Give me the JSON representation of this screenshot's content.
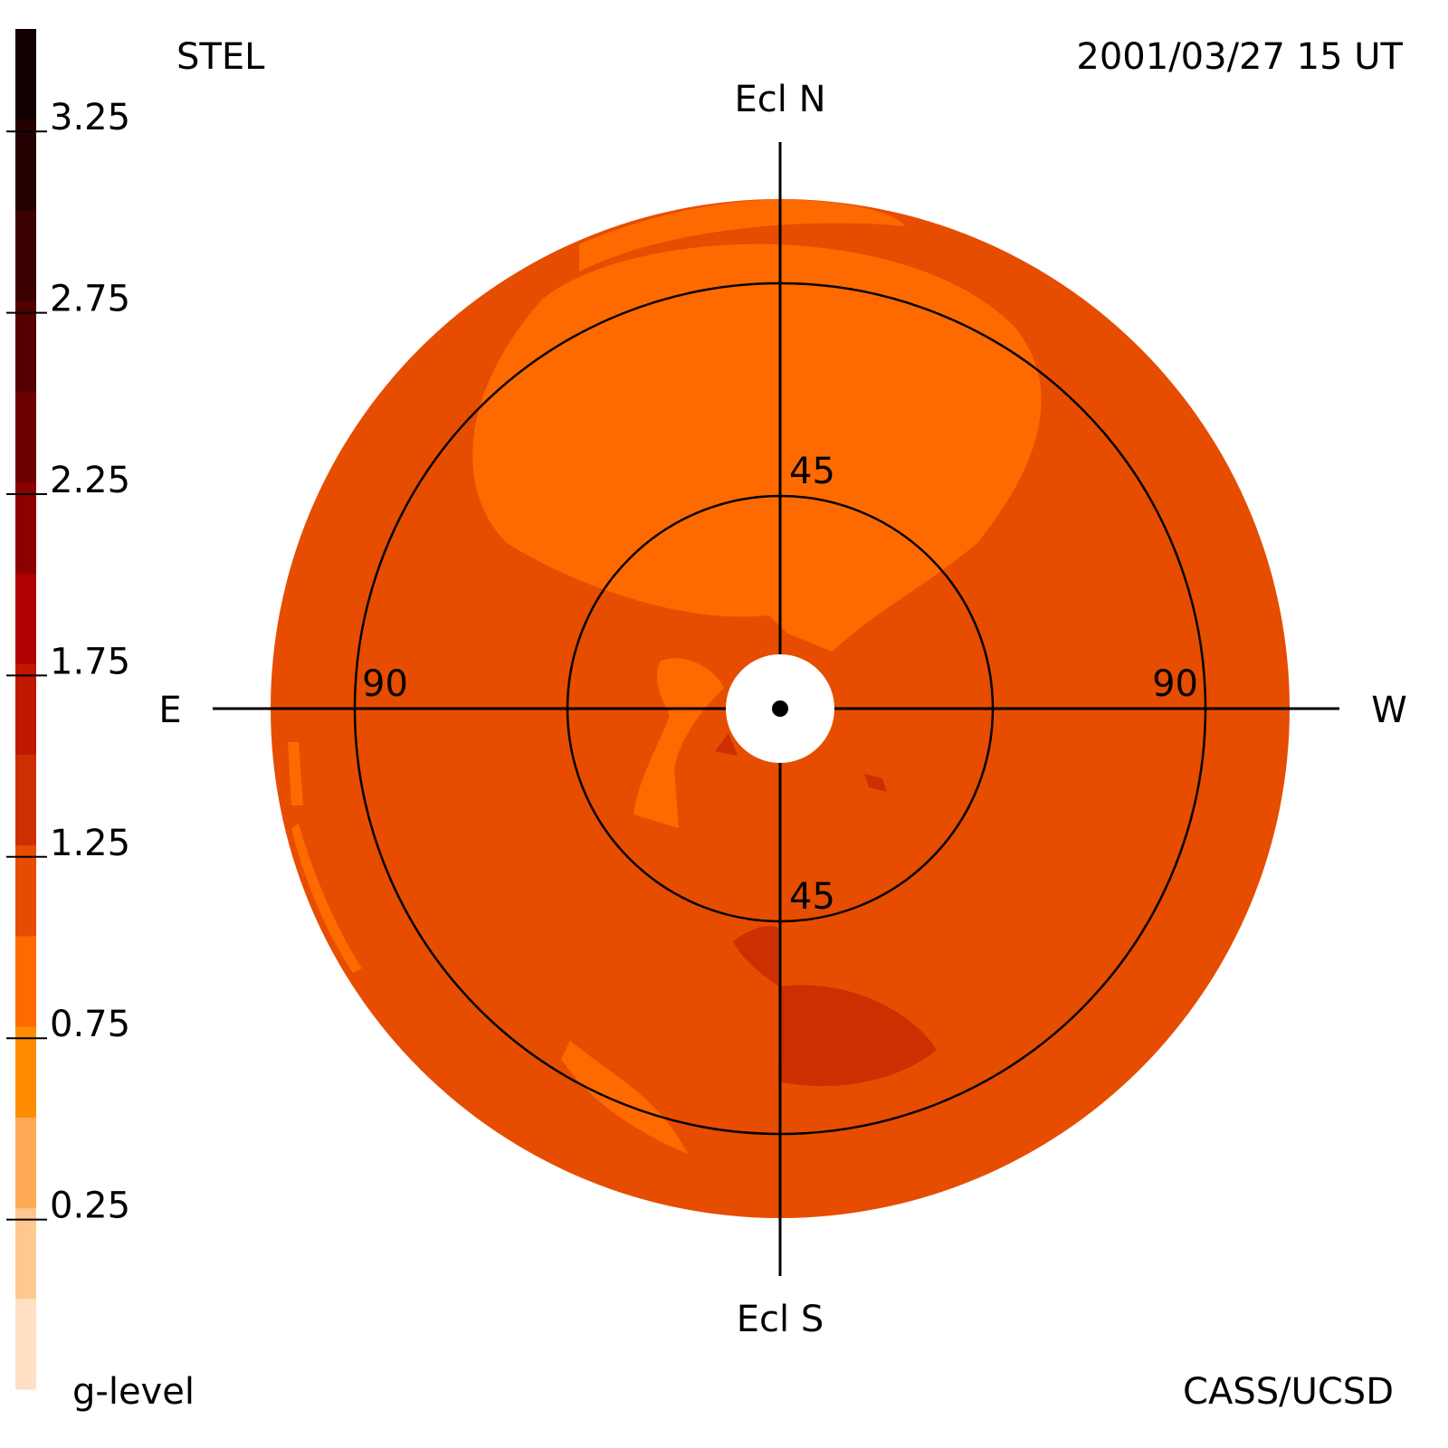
{
  "chart_data": {
    "type": "skymap",
    "title": "STEL",
    "date": "2001/03/27 15 UT",
    "credit": "CASS/UCSD",
    "colorbar_label": "g-level",
    "directions": {
      "north": "Ecl N",
      "south": "Ecl S",
      "east": "E",
      "west": "W"
    },
    "rings": [
      45,
      90
    ],
    "disk_color": "#e64d00",
    "colorbar": {
      "lim": [
        -0.25,
        3.5
      ],
      "ticks": [
        0.25,
        0.75,
        1.25,
        1.75,
        2.25,
        2.75,
        3.25
      ],
      "colors": [
        "#ffe0c4",
        "#ffc890",
        "#ffaa55",
        "#ff8c00",
        "#ff6a00",
        "#e64d00",
        "#cc3000",
        "#c01800",
        "#b00000",
        "#8c0000",
        "#6e0000",
        "#550000",
        "#3c0000",
        "#260000",
        "#120000"
      ]
    }
  }
}
